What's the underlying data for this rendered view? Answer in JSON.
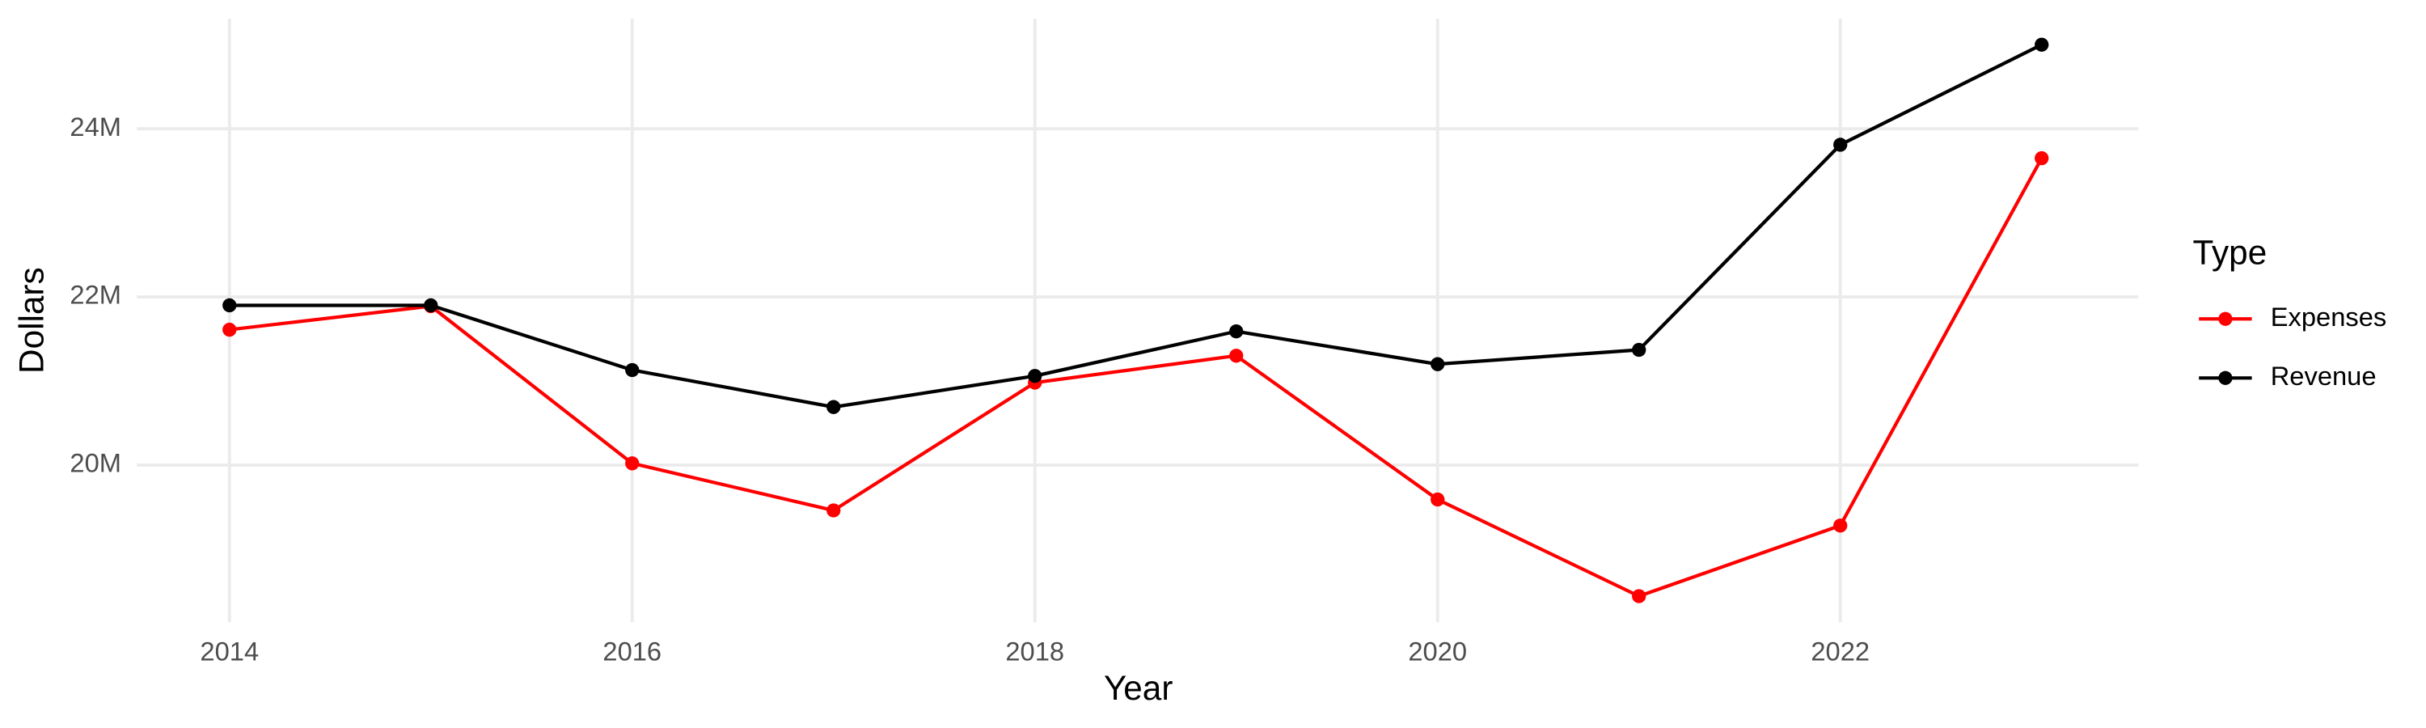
{
  "chart_data": {
    "type": "line",
    "x_label": "Year",
    "y_label": "Dollars",
    "x": [
      2014,
      2015,
      2016,
      2017,
      2018,
      2019,
      2020,
      2021,
      2022,
      2023
    ],
    "series": [
      {
        "name": "Expenses",
        "color": "#ff0000",
        "values": [
          21610000,
          21890000,
          20020000,
          19460000,
          20980000,
          21300000,
          19590000,
          18440000,
          19280000,
          23650000
        ]
      },
      {
        "name": "Revenue",
        "color": "#000000",
        "values": [
          21900000,
          21900000,
          21130000,
          20690000,
          21060000,
          21590000,
          21200000,
          21370000,
          23810000,
          25000000
        ]
      }
    ],
    "xlim": [
      2013.54,
      2023.48
    ],
    "ylim": [
      18130000,
      25310000
    ],
    "xticks": [
      2014,
      2016,
      2018,
      2020,
      2022
    ],
    "yticks": [
      {
        "value": 20000000,
        "label": "20M"
      },
      {
        "value": 22000000,
        "label": "22M"
      },
      {
        "value": 24000000,
        "label": "24M"
      }
    ],
    "grid": true,
    "legend_title": "Type",
    "legend_position": "right"
  }
}
